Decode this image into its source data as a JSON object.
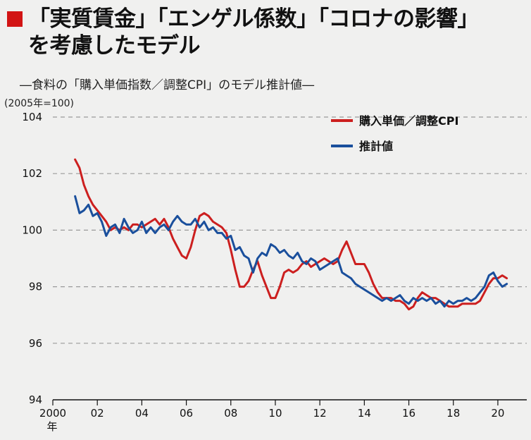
{
  "title_line1": "「実質賃金」「エンゲル係数」「コロナの影響」",
  "title_line2": "を考慮したモデル",
  "subtitle": "―食料の「購入単価指数／調整CPI」のモデル推計値―",
  "unit": "(2005年=100)",
  "colors": {
    "accent": "#d21414",
    "series_red": "#cc1f1f",
    "series_blue": "#1a4f9c"
  },
  "chart_data": {
    "type": "line",
    "x_ticks": [
      "2000",
      "02",
      "04",
      "06",
      "08",
      "10",
      "12",
      "14",
      "16",
      "18",
      "20"
    ],
    "x_tick_values": [
      2000,
      2002,
      2004,
      2006,
      2008,
      2010,
      2012,
      2014,
      2016,
      2018,
      2020
    ],
    "x_year_suffix": "年",
    "y_ticks": [
      "94",
      "96",
      "98",
      "100",
      "102",
      "104"
    ],
    "xlim": [
      2000,
      2021.3
    ],
    "ylim": [
      94,
      104
    ],
    "grid": "horizontal dashed",
    "legend_placement": "top-right",
    "series": [
      {
        "name": "購入単価／調整CPI",
        "color": "#cc1f1f",
        "x": [
          2001.0,
          2001.2,
          2001.4,
          2001.6,
          2001.8,
          2002.0,
          2002.2,
          2002.4,
          2002.6,
          2002.8,
          2003.0,
          2003.2,
          2003.4,
          2003.6,
          2003.8,
          2004.0,
          2004.2,
          2004.4,
          2004.6,
          2004.8,
          2005.0,
          2005.2,
          2005.4,
          2005.6,
          2005.8,
          2006.0,
          2006.2,
          2006.4,
          2006.6,
          2006.8,
          2007.0,
          2007.2,
          2007.4,
          2007.6,
          2007.8,
          2008.0,
          2008.2,
          2008.4,
          2008.6,
          2008.8,
          2009.0,
          2009.2,
          2009.4,
          2009.6,
          2009.8,
          2010.0,
          2010.2,
          2010.4,
          2010.6,
          2010.8,
          2011.0,
          2011.2,
          2011.4,
          2011.6,
          2011.8,
          2012.0,
          2012.2,
          2012.4,
          2012.6,
          2012.8,
          2013.0,
          2013.2,
          2013.4,
          2013.6,
          2013.8,
          2014.0,
          2014.2,
          2014.4,
          2014.6,
          2014.8,
          2015.0,
          2015.2,
          2015.4,
          2015.6,
          2015.8,
          2016.0,
          2016.2,
          2016.4,
          2016.6,
          2016.8,
          2017.0,
          2017.2,
          2017.4,
          2017.6,
          2017.8,
          2018.0,
          2018.2,
          2018.4,
          2018.6,
          2018.8,
          2019.0,
          2019.2,
          2019.4,
          2019.6,
          2019.8,
          2020.0,
          2020.2,
          2020.4
        ],
        "values": [
          102.5,
          102.2,
          101.6,
          101.2,
          100.9,
          100.7,
          100.5,
          100.3,
          100.0,
          100.1,
          100.0,
          100.1,
          100.0,
          100.2,
          100.2,
          100.1,
          100.2,
          100.3,
          100.4,
          100.2,
          100.4,
          100.1,
          99.7,
          99.4,
          99.1,
          99.0,
          99.4,
          100.0,
          100.5,
          100.6,
          100.5,
          100.3,
          100.2,
          100.1,
          99.9,
          99.3,
          98.6,
          98.0,
          98.0,
          98.2,
          98.6,
          98.9,
          98.4,
          98.0,
          97.6,
          97.6,
          98.0,
          98.5,
          98.6,
          98.5,
          98.6,
          98.8,
          98.9,
          98.7,
          98.8,
          98.9,
          99.0,
          98.9,
          98.8,
          98.9,
          99.3,
          99.6,
          99.2,
          98.8,
          98.8,
          98.8,
          98.5,
          98.1,
          97.8,
          97.6,
          97.6,
          97.6,
          97.5,
          97.5,
          97.4,
          97.2,
          97.3,
          97.6,
          97.8,
          97.7,
          97.6,
          97.6,
          97.5,
          97.4,
          97.3,
          97.3,
          97.3,
          97.4,
          97.4,
          97.4,
          97.4,
          97.5,
          97.8,
          98.1,
          98.3,
          98.3,
          98.4,
          98.3
        ]
      },
      {
        "name": "推計値",
        "color": "#1a4f9c",
        "x": [
          2001.0,
          2001.2,
          2001.4,
          2001.6,
          2001.8,
          2002.0,
          2002.2,
          2002.4,
          2002.6,
          2002.8,
          2003.0,
          2003.2,
          2003.4,
          2003.6,
          2003.8,
          2004.0,
          2004.2,
          2004.4,
          2004.6,
          2004.8,
          2005.0,
          2005.2,
          2005.4,
          2005.6,
          2005.8,
          2006.0,
          2006.2,
          2006.4,
          2006.6,
          2006.8,
          2007.0,
          2007.2,
          2007.4,
          2007.6,
          2007.8,
          2008.0,
          2008.2,
          2008.4,
          2008.6,
          2008.8,
          2009.0,
          2009.2,
          2009.4,
          2009.6,
          2009.8,
          2010.0,
          2010.2,
          2010.4,
          2010.6,
          2010.8,
          2011.0,
          2011.2,
          2011.4,
          2011.6,
          2011.8,
          2012.0,
          2012.2,
          2012.4,
          2012.6,
          2012.8,
          2013.0,
          2013.2,
          2013.4,
          2013.6,
          2013.8,
          2014.0,
          2014.2,
          2014.4,
          2014.6,
          2014.8,
          2015.0,
          2015.2,
          2015.4,
          2015.6,
          2015.8,
          2016.0,
          2016.2,
          2016.4,
          2016.6,
          2016.8,
          2017.0,
          2017.2,
          2017.4,
          2017.6,
          2017.8,
          2018.0,
          2018.2,
          2018.4,
          2018.6,
          2018.8,
          2019.0,
          2019.2,
          2019.4,
          2019.6,
          2019.8,
          2020.0,
          2020.2,
          2020.4
        ],
        "values": [
          101.2,
          100.6,
          100.7,
          100.9,
          100.5,
          100.6,
          100.3,
          99.8,
          100.1,
          100.2,
          99.9,
          100.4,
          100.1,
          99.9,
          100.0,
          100.3,
          99.9,
          100.1,
          99.9,
          100.1,
          100.2,
          100.0,
          100.3,
          100.5,
          100.3,
          100.2,
          100.2,
          100.4,
          100.1,
          100.3,
          100.0,
          100.1,
          99.9,
          99.9,
          99.7,
          99.8,
          99.3,
          99.4,
          99.1,
          99.0,
          98.5,
          99.0,
          99.2,
          99.1,
          99.5,
          99.4,
          99.2,
          99.3,
          99.1,
          99.0,
          99.2,
          98.9,
          98.8,
          99.0,
          98.9,
          98.6,
          98.7,
          98.8,
          98.9,
          99.0,
          98.5,
          98.4,
          98.3,
          98.1,
          98.0,
          97.9,
          97.8,
          97.7,
          97.6,
          97.5,
          97.6,
          97.5,
          97.6,
          97.7,
          97.5,
          97.4,
          97.6,
          97.5,
          97.6,
          97.5,
          97.6,
          97.4,
          97.5,
          97.3,
          97.5,
          97.4,
          97.5,
          97.5,
          97.6,
          97.5,
          97.6,
          97.8,
          98.0,
          98.4,
          98.5,
          98.2,
          98.0,
          98.1
        ]
      }
    ]
  }
}
